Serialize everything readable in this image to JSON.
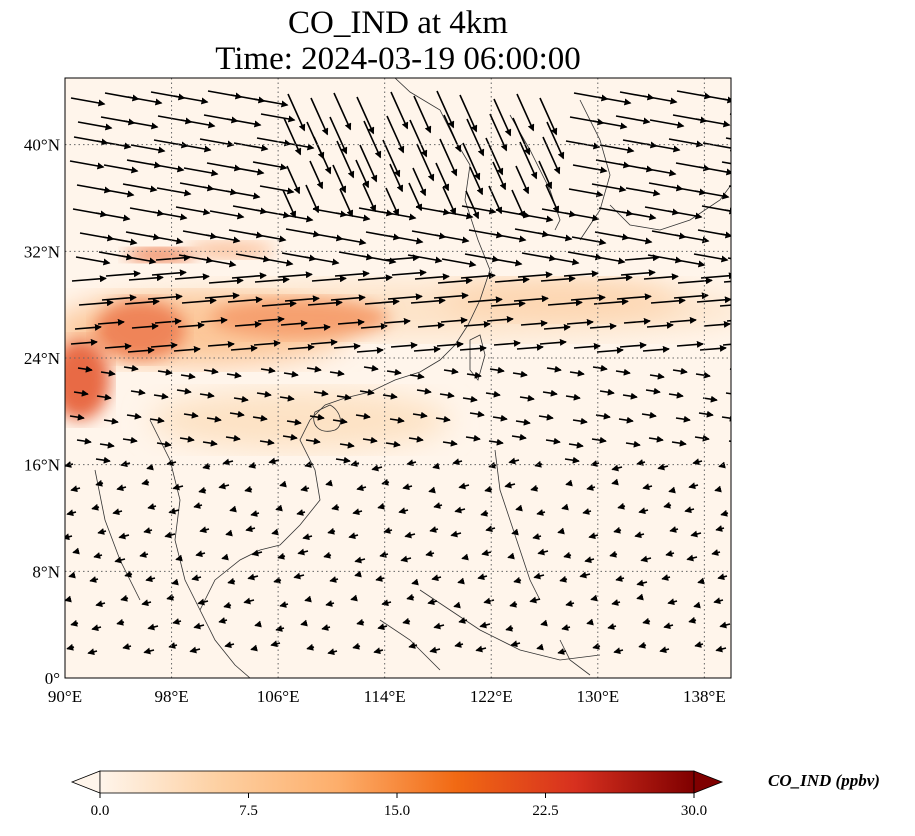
{
  "title": {
    "line1": "CO_IND at 4km",
    "line2": "Time: 2024-03-19 06:00:00"
  },
  "map": {
    "lon_range": [
      90,
      140
    ],
    "lat_range": [
      0,
      45
    ],
    "x_ticks": [
      "90°E",
      "98°E",
      "106°E",
      "114°E",
      "122°E",
      "130°E",
      "138°E"
    ],
    "y_ticks": [
      "0°",
      "8°N",
      "16°N",
      "24°N",
      "32°N",
      "40°N"
    ],
    "gridlines": true,
    "field_colors": {
      "low": "#fff5eb",
      "mid": "#fdae6b",
      "high": "#d7301f"
    }
  },
  "colorbar": {
    "label": "CO_IND (ppbv)",
    "ticks": [
      "0.0",
      "7.5",
      "15.0",
      "22.5",
      "30.0"
    ],
    "range": [
      0,
      30
    ],
    "extend": "both",
    "colors": [
      "#fff5eb",
      "#fdd0a2",
      "#fdae6b",
      "#f16913",
      "#d7301f",
      "#7f0000"
    ]
  }
}
